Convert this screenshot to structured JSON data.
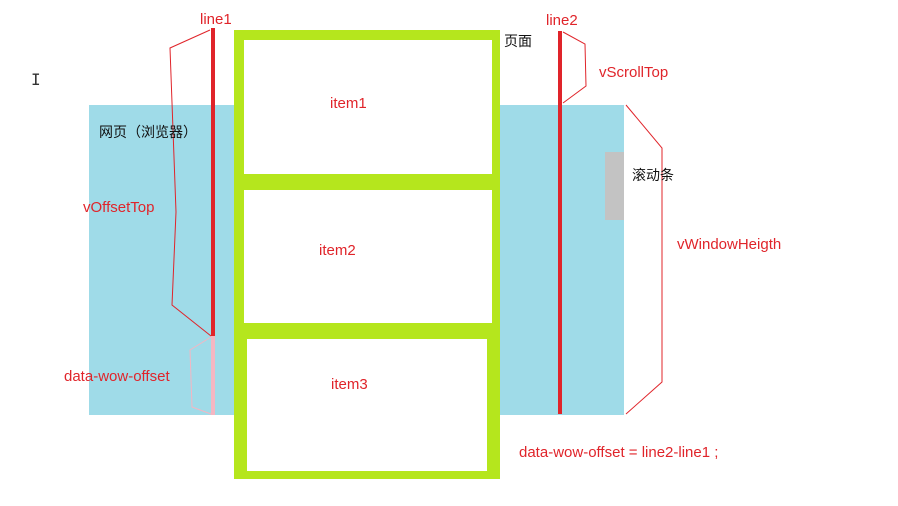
{
  "labels": {
    "line1": "line1",
    "line2": "line2",
    "page": "页面",
    "browser": "网页（浏览器）",
    "item1": "item1",
    "item2": "item2",
    "item3": "item3",
    "vScrollTop": "vScrollTop",
    "scrollbar": "滚动条",
    "vWindowHeigth": "vWindowHeigth",
    "vOffsetTop": "vOffsetTop",
    "dataWowOffset": "data-wow-offset",
    "formula": "data-wow-offset = line2-line1 ;",
    "cursor": "I"
  },
  "colors": {
    "viewport": "#9fdbe8",
    "pageBorder": "#b5e61d",
    "redLine": "#e0242a",
    "offsetPink": "#f4b6c2",
    "scrollbar": "#c3c3c3"
  }
}
